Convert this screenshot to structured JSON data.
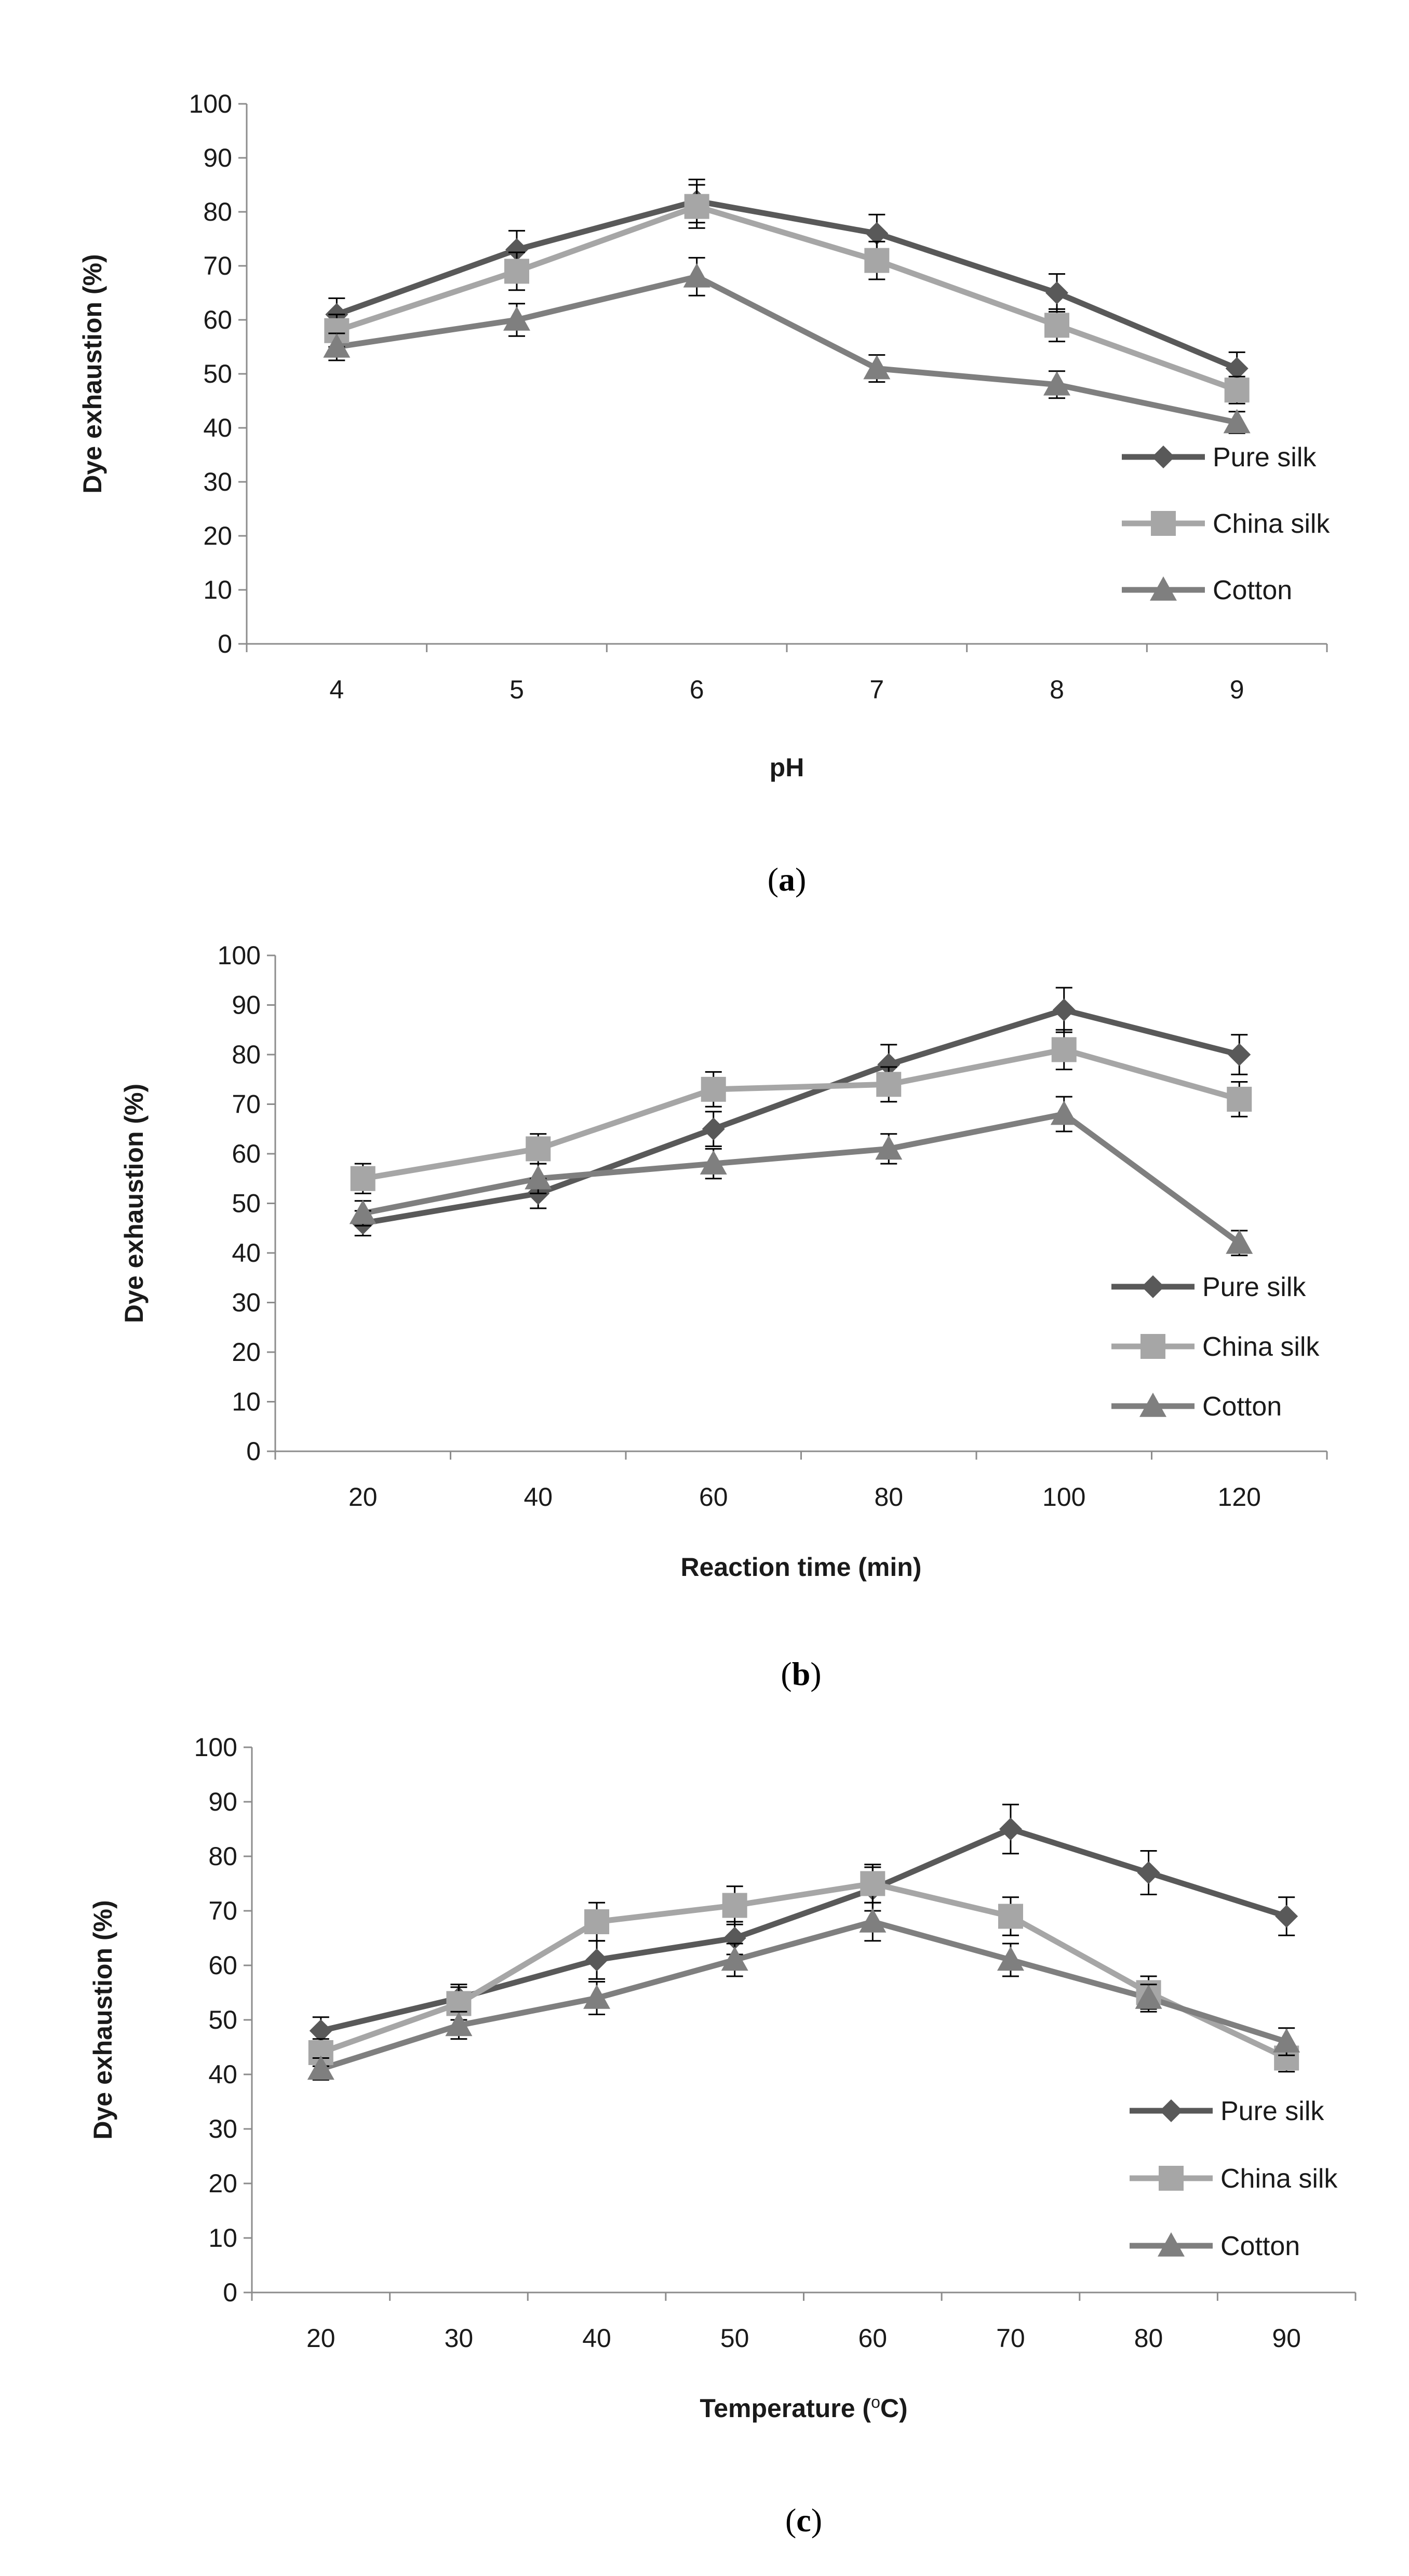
{
  "colors": {
    "pure_silk": "#595959",
    "china_silk": "#a6a6a6",
    "cotton": "#7f7f7f",
    "axis": "#8c8c8c",
    "error_bar": "#000000"
  },
  "chart_data": [
    {
      "type": "line",
      "caption_letter": "a",
      "ylabel": "Dye exhaustion (%)",
      "xlabel_parts": [
        "pH"
      ],
      "ylim": [
        0,
        100
      ],
      "y_ticks": [
        0,
        10,
        20,
        30,
        40,
        50,
        60,
        70,
        80,
        90,
        100
      ],
      "categories": [
        "4",
        "5",
        "6",
        "7",
        "8",
        "9"
      ],
      "legend_position": "right",
      "grid": false,
      "error_bars": true,
      "series": [
        {
          "name": "Pure silk",
          "marker": "diamond",
          "values": [
            61,
            73,
            82,
            76,
            65,
            51
          ],
          "errors": [
            3,
            3.5,
            4,
            3.5,
            3.5,
            3
          ]
        },
        {
          "name": "China silk",
          "marker": "square",
          "values": [
            58,
            69,
            81,
            71,
            59,
            47
          ],
          "errors": [
            3,
            3.5,
            4,
            3.5,
            3,
            2.5
          ]
        },
        {
          "name": "Cotton",
          "marker": "triangle",
          "values": [
            55,
            60,
            68,
            51,
            48,
            41
          ],
          "errors": [
            2.5,
            3,
            3.5,
            2.5,
            2.5,
            2
          ]
        }
      ]
    },
    {
      "type": "line",
      "caption_letter": "b",
      "ylabel": "Dye exhaustion (%)",
      "xlabel_parts": [
        "Reaction time (min)"
      ],
      "ylim": [
        0,
        100
      ],
      "y_ticks": [
        0,
        10,
        20,
        30,
        40,
        50,
        60,
        70,
        80,
        90,
        100
      ],
      "categories": [
        "20",
        "40",
        "60",
        "80",
        "100",
        "120"
      ],
      "legend_position": "right",
      "grid": false,
      "error_bars": true,
      "series": [
        {
          "name": "Pure silk",
          "marker": "diamond",
          "values": [
            46,
            52,
            65,
            78,
            89,
            80
          ],
          "errors": [
            2.5,
            3,
            3.5,
            4,
            4.5,
            4
          ]
        },
        {
          "name": "China silk",
          "marker": "square",
          "values": [
            55,
            61,
            73,
            74,
            81,
            71
          ],
          "errors": [
            3,
            3,
            3.5,
            3.5,
            4,
            3.5
          ]
        },
        {
          "name": "Cotton",
          "marker": "triangle",
          "values": [
            48,
            55,
            58,
            61,
            68,
            42
          ],
          "errors": [
            2.5,
            3,
            3,
            3,
            3.5,
            2.5
          ]
        }
      ]
    },
    {
      "type": "line",
      "caption_letter": "c",
      "ylabel": "Dye exhaustion (%)",
      "xlabel_parts": [
        "Temperature (",
        "o",
        "C)"
      ],
      "ylim": [
        0,
        100
      ],
      "y_ticks": [
        0,
        10,
        20,
        30,
        40,
        50,
        60,
        70,
        80,
        90,
        100
      ],
      "categories": [
        "20",
        "30",
        "40",
        "50",
        "60",
        "70",
        "80",
        "90"
      ],
      "legend_position": "right",
      "grid": false,
      "error_bars": true,
      "series": [
        {
          "name": "Pure silk",
          "marker": "diamond",
          "values": [
            48,
            54,
            61,
            65,
            74,
            85,
            77,
            69
          ],
          "errors": [
            2.5,
            2.5,
            3.5,
            3,
            4,
            4.5,
            4,
            3.5
          ]
        },
        {
          "name": "China silk",
          "marker": "square",
          "values": [
            44,
            53,
            68,
            71,
            75,
            69,
            55,
            43
          ],
          "errors": [
            2.5,
            3,
            3.5,
            3.5,
            3.5,
            3.5,
            3,
            2.5
          ]
        },
        {
          "name": "Cotton",
          "marker": "triangle",
          "values": [
            41,
            49,
            54,
            61,
            68,
            61,
            54,
            46
          ],
          "errors": [
            2,
            2.5,
            3,
            3,
            3.5,
            3,
            2.5,
            2.5
          ]
        }
      ]
    }
  ]
}
